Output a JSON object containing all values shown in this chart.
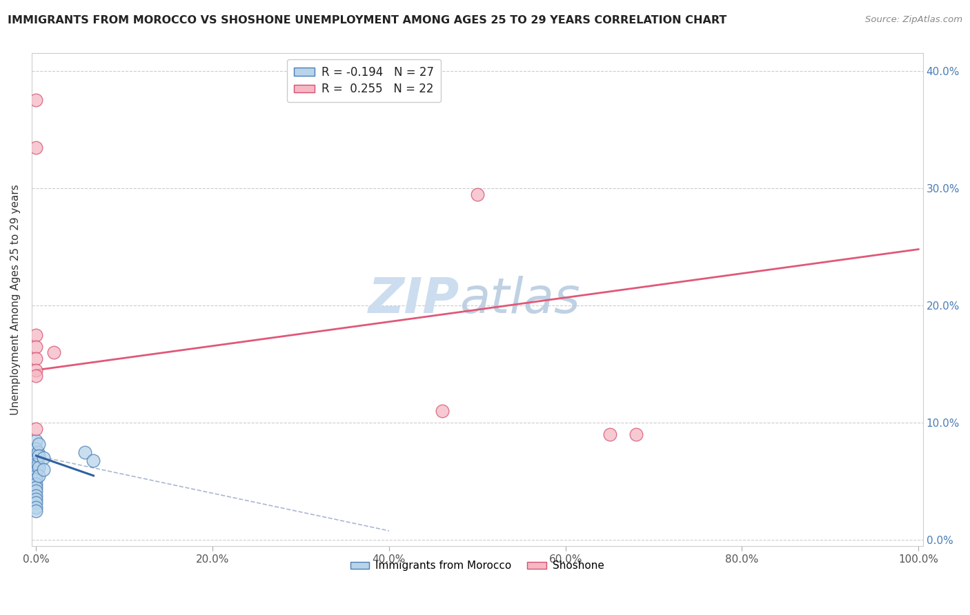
{
  "title": "IMMIGRANTS FROM MOROCCO VS SHOSHONE UNEMPLOYMENT AMONG AGES 25 TO 29 YEARS CORRELATION CHART",
  "source": "Source: ZipAtlas.com",
  "ylabel_label": "Unemployment Among Ages 25 to 29 years",
  "legend_label1": "Immigrants from Morocco",
  "legend_label2": "Shoshone",
  "r1": -0.194,
  "n1": 27,
  "r2": 0.255,
  "n2": 22,
  "color_blue_fill": "#b8d4ea",
  "color_pink_fill": "#f5b8c4",
  "color_blue_edge": "#4a7db5",
  "color_pink_edge": "#d45070",
  "color_blue_line": "#3060a0",
  "color_pink_line": "#e05878",
  "color_dashed": "#a8b8d0",
  "watermark_color": "#ccddef",
  "blue_scatter_x": [
    0.0,
    0.0,
    0.0,
    0.0,
    0.0,
    0.0,
    0.0,
    0.0,
    0.0,
    0.0,
    0.0,
    0.0,
    0.0,
    0.0,
    0.0,
    0.0,
    0.0,
    0.002,
    0.002,
    0.003,
    0.003,
    0.003,
    0.003,
    0.008,
    0.008,
    0.055,
    0.065
  ],
  "blue_scatter_y": [
    0.085,
    0.078,
    0.072,
    0.068,
    0.065,
    0.062,
    0.058,
    0.055,
    0.052,
    0.048,
    0.045,
    0.042,
    0.038,
    0.035,
    0.032,
    0.028,
    0.025,
    0.075,
    0.065,
    0.082,
    0.072,
    0.062,
    0.055,
    0.07,
    0.06,
    0.075,
    0.068
  ],
  "pink_scatter_x": [
    0.0,
    0.0,
    0.0,
    0.0,
    0.0,
    0.0,
    0.0,
    0.0,
    0.02,
    0.46,
    0.5,
    0.65,
    0.68
  ],
  "pink_scatter_y": [
    0.375,
    0.335,
    0.175,
    0.165,
    0.155,
    0.145,
    0.14,
    0.095,
    0.16,
    0.11,
    0.295,
    0.09,
    0.09
  ],
  "blue_line_x": [
    0.0,
    0.065
  ],
  "blue_line_y": [
    0.072,
    0.055
  ],
  "pink_line_x": [
    0.0,
    1.0
  ],
  "pink_line_y": [
    0.145,
    0.248
  ],
  "dashed_line_x": [
    0.0,
    0.4
  ],
  "dashed_line_y": [
    0.072,
    0.008
  ],
  "xlim": [
    -0.005,
    1.005
  ],
  "ylim": [
    -0.005,
    0.415
  ],
  "x_ticks": [
    0.0,
    0.2,
    0.4,
    0.6,
    0.8,
    1.0
  ],
  "y_ticks": [
    0.0,
    0.1,
    0.2,
    0.3,
    0.4
  ],
  "x_tick_labels": [
    "0.0%",
    "20.0%",
    "40.0%",
    "60.0%",
    "80.0%",
    "100.0%"
  ],
  "y_tick_labels": [
    "0.0%",
    "10.0%",
    "20.0%",
    "30.0%",
    "40.0%"
  ]
}
